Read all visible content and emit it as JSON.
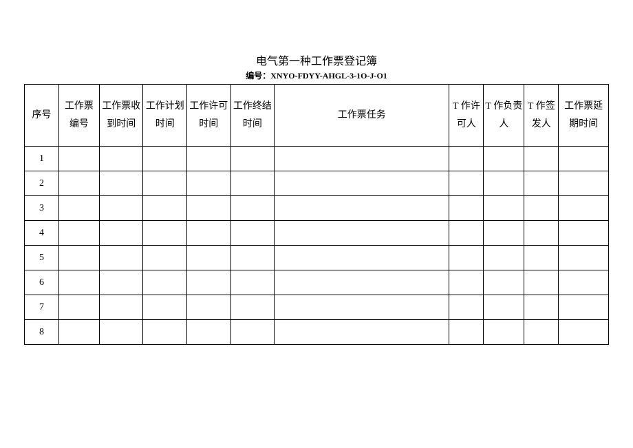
{
  "title": "电气第一种工作票登记簿",
  "subtitle_label": "编号：",
  "subtitle_code": "XNYO-FDYY-AHGL-3-1O-J-O1",
  "columns": {
    "seq": "序号",
    "ticket_no": "工作票编号",
    "receive_time": "工作票收到时间",
    "plan_time": "工作计划时间",
    "permit_time": "工作许可时间",
    "end_time": "工作终结时间",
    "task": "工作票任务",
    "permitter": "T 作许可人",
    "responsible": "T 作负责人",
    "issuer": "T 作签发人",
    "delay_time": "工作票延期时间"
  },
  "rows": [
    {
      "seq": "1"
    },
    {
      "seq": "2"
    },
    {
      "seq": "3"
    },
    {
      "seq": "4"
    },
    {
      "seq": "5"
    },
    {
      "seq": "6"
    },
    {
      "seq": "7"
    },
    {
      "seq": "8"
    }
  ],
  "style": {
    "border_color": "#000000",
    "background_color": "#ffffff",
    "title_fontsize": 16,
    "subtitle_fontsize": 12,
    "cell_fontsize": 14,
    "header_row_height": 90,
    "body_row_height": 36
  }
}
